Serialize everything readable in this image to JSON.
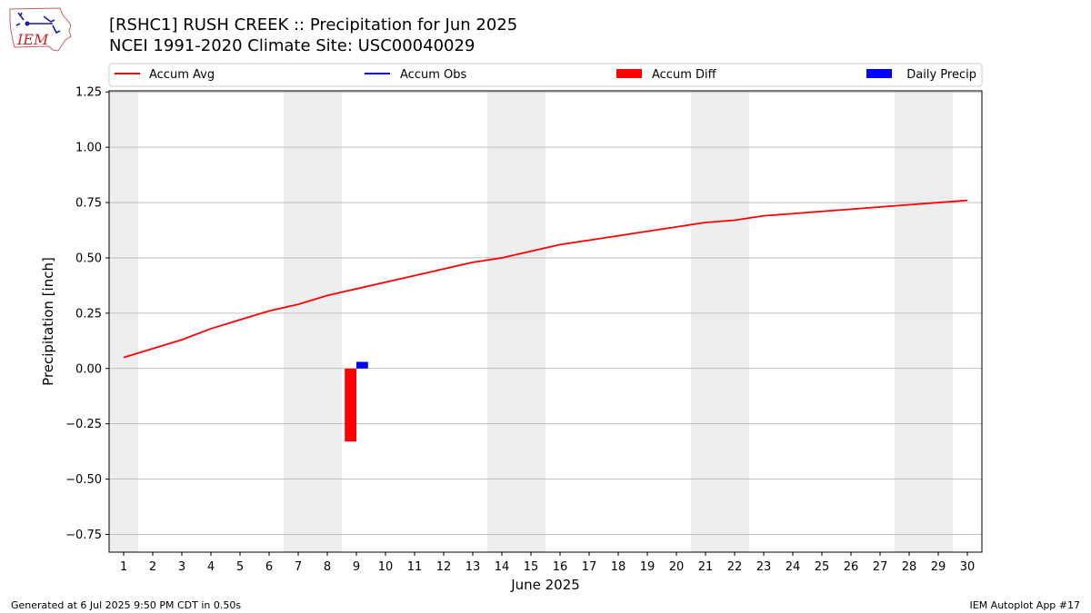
{
  "header": {
    "title_line1": "[RSHC1] RUSH CREEK :: Precipitation for Jun 2025",
    "title_line2": "NCEI 1991-2020 Climate Site: USC00040029"
  },
  "logo": {
    "text": "IEM"
  },
  "footer": {
    "left": "Generated at 6 Jul 2025 9:50 PM CDT in 0.50s",
    "right": "IEM Autoplot App #17"
  },
  "colors": {
    "accum_avg": "#ff0000",
    "accum_obs": "#0000ff",
    "accum_diff": "#ff0000",
    "daily_precip": "#0000ff",
    "weekend_shade": "#eeeeee",
    "grid": "#b0b0b0"
  },
  "chart_data": {
    "type": "bar",
    "title": "[RSHC1] RUSH CREEK :: Precipitation for Jun 2025",
    "xlabel": "June 2025",
    "ylabel": "Precipitation [inch]",
    "ylim": [
      -0.83,
      1.255
    ],
    "xlim": [
      0.5,
      30.5
    ],
    "grid": "y",
    "legend_placement": "top",
    "legend": [
      "Accum Avg",
      "Accum Obs",
      "Accum Diff",
      "Daily Precip"
    ],
    "x": [
      1,
      2,
      3,
      4,
      5,
      6,
      7,
      8,
      9,
      10,
      11,
      12,
      13,
      14,
      15,
      16,
      17,
      18,
      19,
      20,
      21,
      22,
      23,
      24,
      25,
      26,
      27,
      28,
      29,
      30
    ],
    "x_tick_labels": [
      "1",
      "2",
      "3",
      "4",
      "5",
      "6",
      "7",
      "8",
      "9",
      "10",
      "11",
      "12",
      "13",
      "14",
      "15",
      "16",
      "17",
      "18",
      "19",
      "20",
      "21",
      "22",
      "23",
      "24",
      "25",
      "26",
      "27",
      "28",
      "29",
      "30"
    ],
    "y_tick_values": [
      1.25,
      1.0,
      0.75,
      0.5,
      0.25,
      0.0,
      -0.25,
      -0.5,
      -0.75
    ],
    "y_tick_labels": [
      "1.25",
      "1.00",
      "0.75",
      "0.50",
      "0.25",
      "0.00",
      "−0.25",
      "−0.50",
      "−0.75"
    ],
    "shaded_days": [
      [
        0.5,
        1.5
      ],
      [
        6.5,
        8.5
      ],
      [
        13.5,
        15.5
      ],
      [
        20.5,
        22.5
      ],
      [
        27.5,
        29.5
      ]
    ],
    "series": [
      {
        "name": "Accum Avg",
        "type": "line",
        "x": [
          1,
          2,
          3,
          4,
          5,
          6,
          7,
          8,
          9,
          10,
          11,
          12,
          13,
          14,
          15,
          16,
          17,
          18,
          19,
          20,
          21,
          22,
          23,
          24,
          25,
          26,
          27,
          28,
          29,
          30
        ],
        "values": [
          0.05,
          0.09,
          0.13,
          0.18,
          0.22,
          0.26,
          0.29,
          0.33,
          0.36,
          0.39,
          0.42,
          0.45,
          0.48,
          0.5,
          0.53,
          0.56,
          0.58,
          0.6,
          0.62,
          0.64,
          0.66,
          0.67,
          0.69,
          0.7,
          0.71,
          0.72,
          0.73,
          0.74,
          0.75,
          0.76
        ]
      },
      {
        "name": "Accum Obs",
        "type": "line",
        "x": [],
        "values": []
      },
      {
        "name": "Accum Diff",
        "type": "bar",
        "x": [
          9
        ],
        "values": [
          -0.33
        ]
      },
      {
        "name": "Daily Precip",
        "type": "bar",
        "x": [
          9
        ],
        "values": [
          0.03
        ]
      }
    ]
  }
}
